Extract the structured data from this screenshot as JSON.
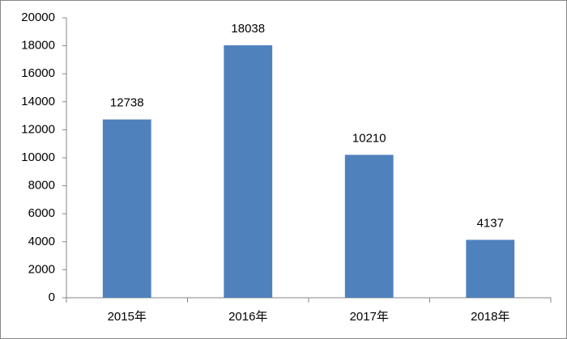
{
  "chart_data": {
    "type": "bar",
    "categories": [
      "2015年",
      "2016年",
      "2017年",
      "2018年"
    ],
    "values": [
      12738,
      18038,
      10210,
      4137
    ],
    "color": "#4f81bd",
    "ylim": [
      0,
      20000
    ],
    "yticks": [
      0,
      2000,
      4000,
      6000,
      8000,
      10000,
      12000,
      14000,
      16000,
      18000,
      20000
    ],
    "grid": false
  }
}
